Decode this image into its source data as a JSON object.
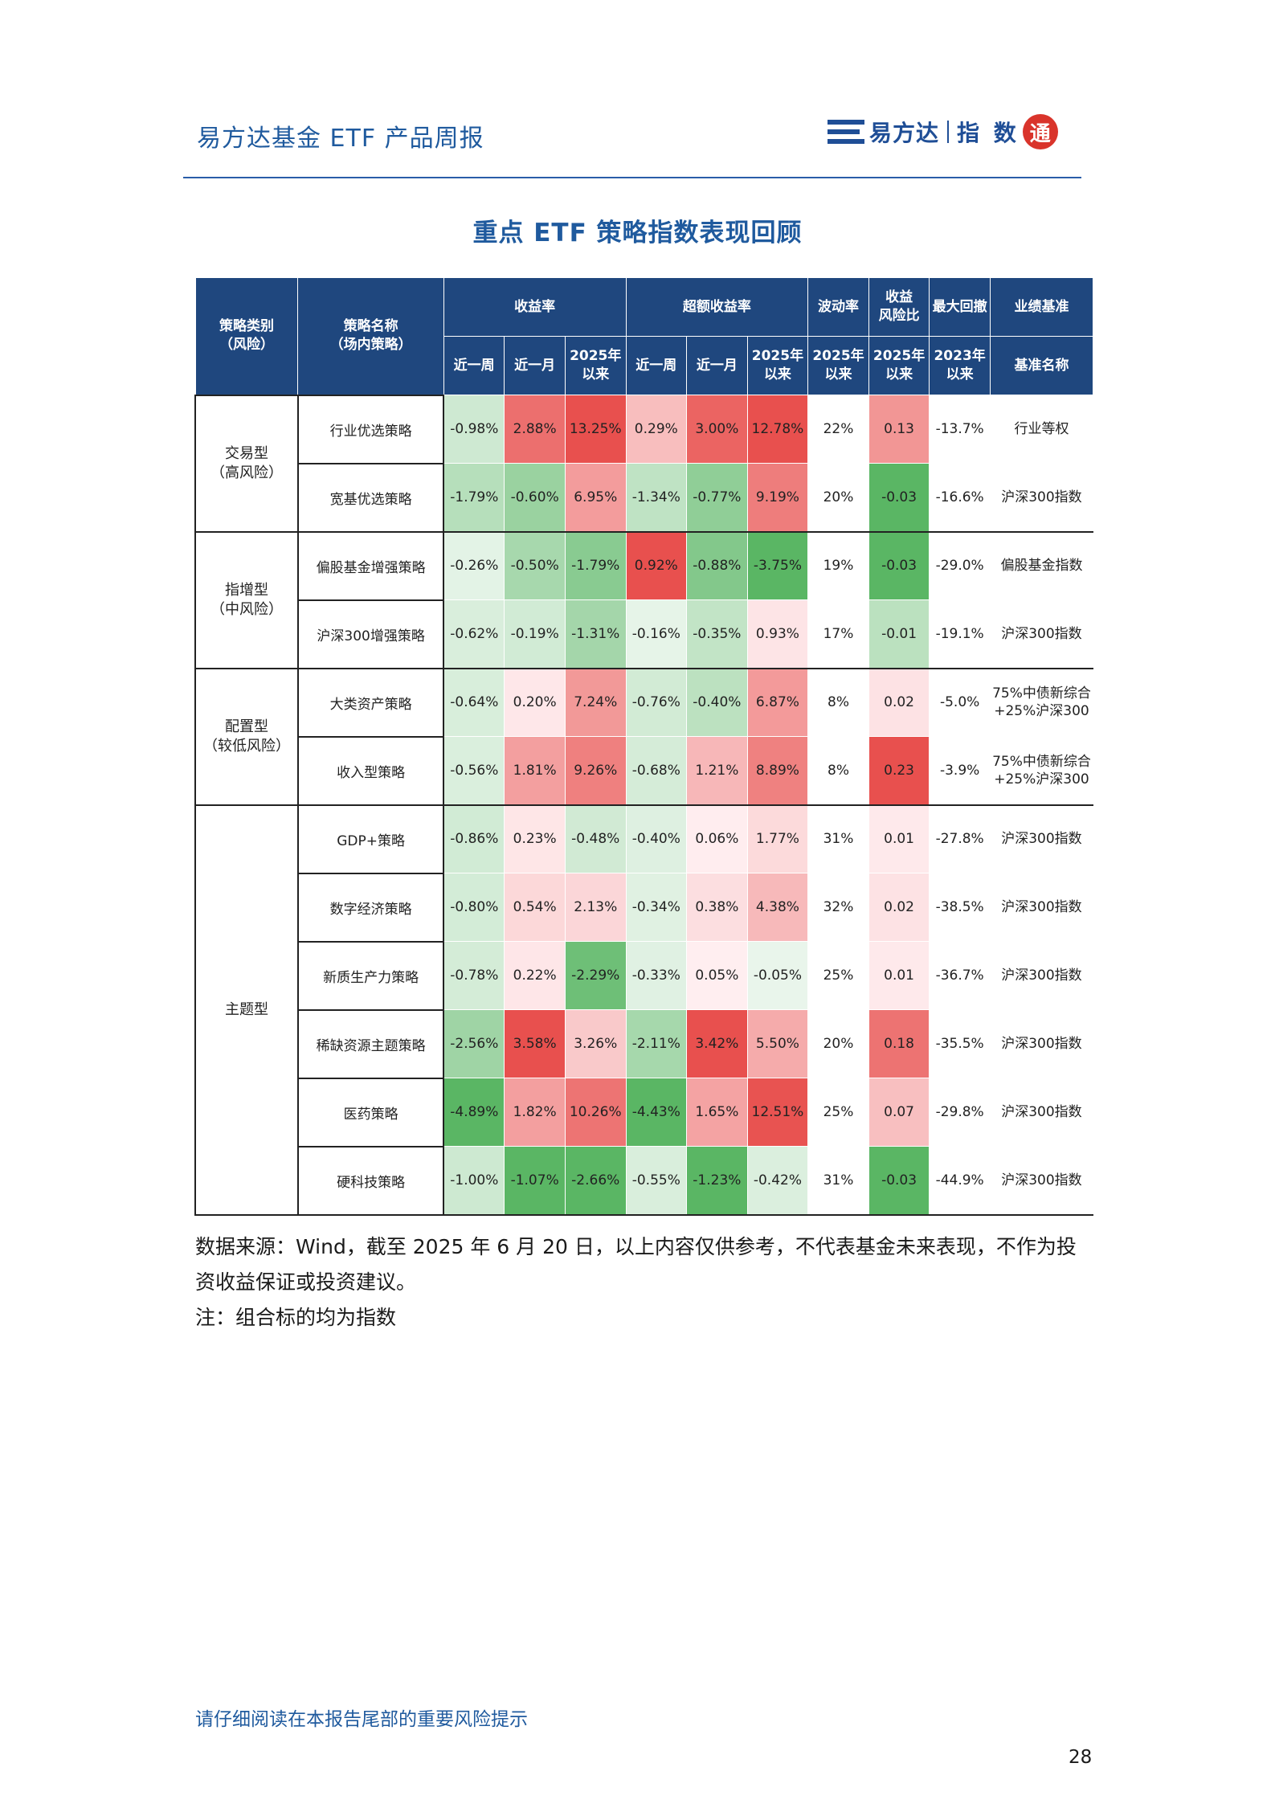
{
  "header": {
    "title": "易方达基金 ETF 产品周报",
    "logo_brand": "易方达",
    "logo_sub": "指 数",
    "logo_seal": "通"
  },
  "section_title": "重点 ETF 策略指数表现回顾",
  "table": {
    "head": {
      "category": "策略类别\n（风险）",
      "name": "策略名称\n（场内策略）",
      "return_group": "收益率",
      "excess_group": "超额收益率",
      "vol_group": "波动率",
      "ratio_group": "收益\n风险比",
      "dd_group": "最大回撤",
      "bench_group": "业绩基准",
      "sub": [
        "近一周",
        "近一月",
        "2025年\n以来",
        "近一周",
        "近一月",
        "2025年\n以来",
        "2025年\n以来",
        "2025年\n以来",
        "2023年\n以来",
        "基准名称"
      ]
    },
    "groups": [
      {
        "category": "交易型\n（高风险）",
        "rows": [
          {
            "name": "行业优选策略",
            "cells": [
              "-0.98%",
              "2.88%",
              "13.25%",
              "0.29%",
              "3.00%",
              "12.78%",
              "22%",
              "0.13",
              "-13.7%",
              "行业等权"
            ]
          },
          {
            "name": "宽基优选策略",
            "cells": [
              "-1.79%",
              "-0.60%",
              "6.95%",
              "-1.34%",
              "-0.77%",
              "9.19%",
              "20%",
              "-0.03",
              "-16.6%",
              "沪深300指数"
            ]
          }
        ]
      },
      {
        "category": "指增型\n（中风险）",
        "rows": [
          {
            "name": "偏股基金增强策略",
            "cells": [
              "-0.26%",
              "-0.50%",
              "-1.79%",
              "0.92%",
              "-0.88%",
              "-3.75%",
              "19%",
              "-0.03",
              "-29.0%",
              "偏股基金指数"
            ]
          },
          {
            "name": "沪深300增强策略",
            "cells": [
              "-0.62%",
              "-0.19%",
              "-1.31%",
              "-0.16%",
              "-0.35%",
              "0.93%",
              "17%",
              "-0.01",
              "-19.1%",
              "沪深300指数"
            ]
          }
        ]
      },
      {
        "category": "配置型\n（较低风险）",
        "rows": [
          {
            "name": "大类资产策略",
            "cells": [
              "-0.64%",
              "0.20%",
              "7.24%",
              "-0.76%",
              "-0.40%",
              "6.87%",
              "8%",
              "0.02",
              "-5.0%",
              "75%中债新综合\n+25%沪深300"
            ]
          },
          {
            "name": "收入型策略",
            "cells": [
              "-0.56%",
              "1.81%",
              "9.26%",
              "-0.68%",
              "1.21%",
              "8.89%",
              "8%",
              "0.23",
              "-3.9%",
              "75%中债新综合\n+25%沪深300"
            ]
          }
        ]
      },
      {
        "category": "主题型",
        "rows": [
          {
            "name": "GDP+策略",
            "cells": [
              "-0.86%",
              "0.23%",
              "-0.48%",
              "-0.40%",
              "0.06%",
              "1.77%",
              "31%",
              "0.01",
              "-27.8%",
              "沪深300指数"
            ]
          },
          {
            "name": "数字经济策略",
            "cells": [
              "-0.80%",
              "0.54%",
              "2.13%",
              "-0.34%",
              "0.38%",
              "4.38%",
              "32%",
              "0.02",
              "-38.5%",
              "沪深300指数"
            ]
          },
          {
            "name": "新质生产力策略",
            "cells": [
              "-0.78%",
              "0.22%",
              "-2.29%",
              "-0.33%",
              "0.05%",
              "-0.05%",
              "25%",
              "0.01",
              "-36.7%",
              "沪深300指数"
            ]
          },
          {
            "name": "稀缺资源主题策略",
            "cells": [
              "-2.56%",
              "3.58%",
              "3.26%",
              "-2.11%",
              "3.42%",
              "5.50%",
              "20%",
              "0.18",
              "-35.5%",
              "沪深300指数"
            ]
          },
          {
            "name": "医药策略",
            "cells": [
              "-4.89%",
              "1.82%",
              "10.26%",
              "-4.43%",
              "1.65%",
              "12.51%",
              "25%",
              "0.07",
              "-29.8%",
              "沪深300指数"
            ]
          },
          {
            "name": "硬科技策略",
            "cells": [
              "-1.00%",
              "-1.07%",
              "-2.66%",
              "-0.55%",
              "-1.23%",
              "-0.42%",
              "31%",
              "-0.03",
              "-44.9%",
              "沪深300指数"
            ]
          }
        ]
      }
    ]
  },
  "notes": [
    "数据来源：Wind，截至 2025 年 6 月 20 日，以上内容仅供参考，不代表基金未来表现，不作为投资收益保证或投资建议。",
    "注：组合标的均为指数"
  ],
  "footer": {
    "warning": "请仔细阅读在本报告尾部的重要风险提示",
    "page": "28"
  },
  "colors": {
    "brand_blue": "#1f5a9e",
    "header_fill": "#1f477e",
    "positive": "#e8453c",
    "negative": "#3fa455"
  }
}
